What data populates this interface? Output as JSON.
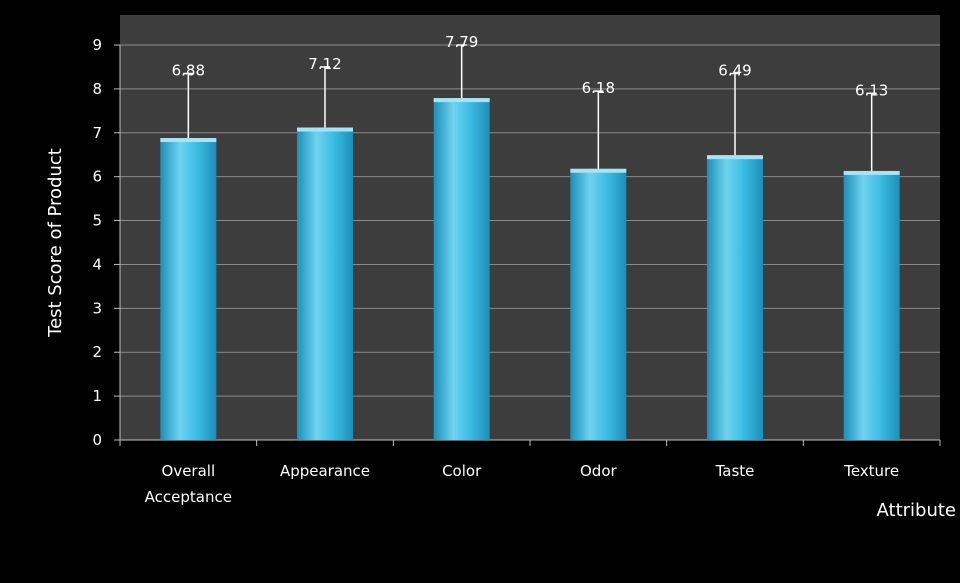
{
  "chart_data": {
    "type": "bar",
    "title": "",
    "xlabel": "Attribute",
    "ylabel": "Test Score of Product",
    "categories": [
      [
        "Overall",
        "Acceptance"
      ],
      [
        "Appearance"
      ],
      [
        "Color"
      ],
      [
        "Odor"
      ],
      [
        "Taste"
      ],
      [
        "Texture"
      ]
    ],
    "values": [
      6.88,
      7.12,
      7.79,
      6.18,
      6.49,
      6.13
    ],
    "value_labels": [
      "6.88",
      "7.12",
      "7.79",
      "6.18",
      "6.49",
      "6.13"
    ],
    "error_upper": [
      8.35,
      8.5,
      9.0,
      7.95,
      8.35,
      7.9
    ],
    "ylim": [
      0,
      9
    ],
    "yticks": [
      0,
      1,
      2,
      3,
      4,
      5,
      6,
      7,
      8,
      9
    ],
    "grid": true,
    "legend": "none"
  },
  "colors": {
    "background": "#000000",
    "plot_area": "#3d3d3d",
    "gridline": "#8a8a8a",
    "bar_light": "#6fd3f0",
    "bar_mid": "#3bbde4",
    "bar_dark": "#1d8fb8",
    "bar_top": "#9ee6f8",
    "error_bar": "#ffffff",
    "text": "#ffffff",
    "axis": "#bfbfbf"
  }
}
